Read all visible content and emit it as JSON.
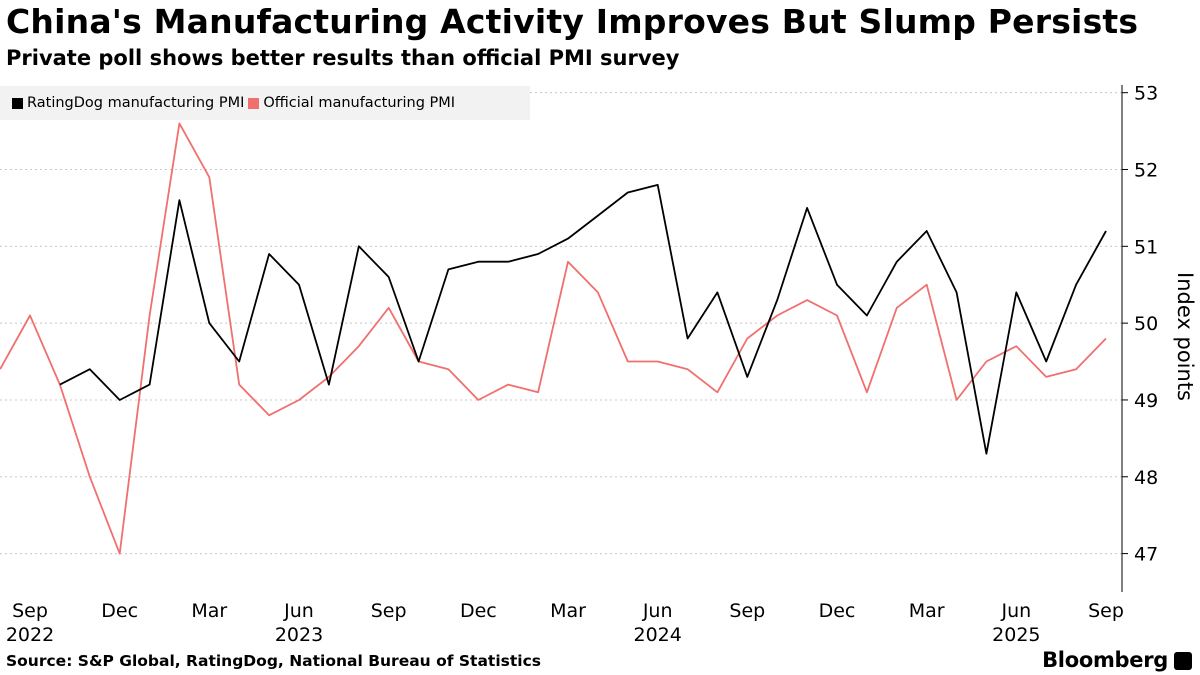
{
  "title": "China's Manufacturing Activity Improves But Slump Persists",
  "subtitle": "Private poll shows better results than official PMI survey",
  "source": "Source: S&P Global, RatingDog, National Bureau of Statistics",
  "brand": "Bloomberg",
  "chart_data": {
    "type": "line",
    "ylabel": "Index points",
    "ylim": [
      46.5,
      53.1
    ],
    "yticks": [
      47,
      48,
      49,
      50,
      51,
      52,
      53
    ],
    "legend_position": "top-left",
    "grid": true,
    "x_tick_labels": [
      {
        "label": "Sep",
        "date": "2022-09"
      },
      {
        "label": "Dec",
        "date": "2022-12"
      },
      {
        "label": "Mar",
        "date": "2023-03"
      },
      {
        "label": "Jun",
        "date": "2023-06"
      },
      {
        "label": "Sep",
        "date": "2023-09"
      },
      {
        "label": "Dec",
        "date": "2023-12"
      },
      {
        "label": "Mar",
        "date": "2024-03"
      },
      {
        "label": "Jun",
        "date": "2024-06"
      },
      {
        "label": "Sep",
        "date": "2024-09"
      },
      {
        "label": "Dec",
        "date": "2024-12"
      },
      {
        "label": "Mar",
        "date": "2025-03"
      },
      {
        "label": "Jun",
        "date": "2025-06"
      },
      {
        "label": "Sep",
        "date": "2025-09"
      }
    ],
    "year_labels": [
      {
        "label": "2022",
        "date": "2022-09"
      },
      {
        "label": "2023",
        "date": "2023-06"
      },
      {
        "label": "2024",
        "date": "2024-06"
      },
      {
        "label": "2025",
        "date": "2025-06"
      }
    ],
    "series": [
      {
        "name": "RatingDog manufacturing PMI",
        "color": "#000000",
        "points": [
          {
            "x": "2022-10",
            "y": 49.2
          },
          {
            "x": "2022-11",
            "y": 49.4
          },
          {
            "x": "2022-12",
            "y": 49.0
          },
          {
            "x": "2023-01",
            "y": 49.2
          },
          {
            "x": "2023-02",
            "y": 51.6
          },
          {
            "x": "2023-03",
            "y": 50.0
          },
          {
            "x": "2023-04",
            "y": 49.5
          },
          {
            "x": "2023-05",
            "y": 50.9
          },
          {
            "x": "2023-06",
            "y": 50.5
          },
          {
            "x": "2023-07",
            "y": 49.2
          },
          {
            "x": "2023-08",
            "y": 51.0
          },
          {
            "x": "2023-09",
            "y": 50.6
          },
          {
            "x": "2023-10",
            "y": 49.5
          },
          {
            "x": "2023-11",
            "y": 50.7
          },
          {
            "x": "2023-12",
            "y": 50.8
          },
          {
            "x": "2024-01",
            "y": 50.8
          },
          {
            "x": "2024-02",
            "y": 50.9
          },
          {
            "x": "2024-03",
            "y": 51.1
          },
          {
            "x": "2024-04",
            "y": 51.4
          },
          {
            "x": "2024-05",
            "y": 51.7
          },
          {
            "x": "2024-06",
            "y": 51.8
          },
          {
            "x": "2024-07",
            "y": 49.8
          },
          {
            "x": "2024-08",
            "y": 50.4
          },
          {
            "x": "2024-09",
            "y": 49.3
          },
          {
            "x": "2024-10",
            "y": 50.3
          },
          {
            "x": "2024-11",
            "y": 51.5
          },
          {
            "x": "2024-12",
            "y": 50.5
          },
          {
            "x": "2025-01",
            "y": 50.1
          },
          {
            "x": "2025-02",
            "y": 50.8
          },
          {
            "x": "2025-03",
            "y": 51.2
          },
          {
            "x": "2025-04",
            "y": 50.4
          },
          {
            "x": "2025-05",
            "y": 48.3
          },
          {
            "x": "2025-06",
            "y": 50.4
          },
          {
            "x": "2025-07",
            "y": 49.5
          },
          {
            "x": "2025-08",
            "y": 50.5
          },
          {
            "x": "2025-09",
            "y": 51.2
          }
        ]
      },
      {
        "name": "Official manufacturing PMI",
        "color": "#f0706f",
        "points": [
          {
            "x": "2022-08",
            "y": 49.4
          },
          {
            "x": "2022-09",
            "y": 50.1
          },
          {
            "x": "2022-10",
            "y": 49.2
          },
          {
            "x": "2022-11",
            "y": 48.0
          },
          {
            "x": "2022-12",
            "y": 47.0
          },
          {
            "x": "2023-01",
            "y": 50.1
          },
          {
            "x": "2023-02",
            "y": 52.6
          },
          {
            "x": "2023-03",
            "y": 51.9
          },
          {
            "x": "2023-04",
            "y": 49.2
          },
          {
            "x": "2023-05",
            "y": 48.8
          },
          {
            "x": "2023-06",
            "y": 49.0
          },
          {
            "x": "2023-07",
            "y": 49.3
          },
          {
            "x": "2023-08",
            "y": 49.7
          },
          {
            "x": "2023-09",
            "y": 50.2
          },
          {
            "x": "2023-10",
            "y": 49.5
          },
          {
            "x": "2023-11",
            "y": 49.4
          },
          {
            "x": "2023-12",
            "y": 49.0
          },
          {
            "x": "2024-01",
            "y": 49.2
          },
          {
            "x": "2024-02",
            "y": 49.1
          },
          {
            "x": "2024-03",
            "y": 50.8
          },
          {
            "x": "2024-04",
            "y": 50.4
          },
          {
            "x": "2024-05",
            "y": 49.5
          },
          {
            "x": "2024-06",
            "y": 49.5
          },
          {
            "x": "2024-07",
            "y": 49.4
          },
          {
            "x": "2024-08",
            "y": 49.1
          },
          {
            "x": "2024-09",
            "y": 49.8
          },
          {
            "x": "2024-10",
            "y": 50.1
          },
          {
            "x": "2024-11",
            "y": 50.3
          },
          {
            "x": "2024-12",
            "y": 50.1
          },
          {
            "x": "2025-01",
            "y": 49.1
          },
          {
            "x": "2025-02",
            "y": 50.2
          },
          {
            "x": "2025-03",
            "y": 50.5
          },
          {
            "x": "2025-04",
            "y": 49.0
          },
          {
            "x": "2025-05",
            "y": 49.5
          },
          {
            "x": "2025-06",
            "y": 49.7
          },
          {
            "x": "2025-07",
            "y": 49.3
          },
          {
            "x": "2025-08",
            "y": 49.4
          },
          {
            "x": "2025-09",
            "y": 49.8
          }
        ]
      }
    ]
  }
}
